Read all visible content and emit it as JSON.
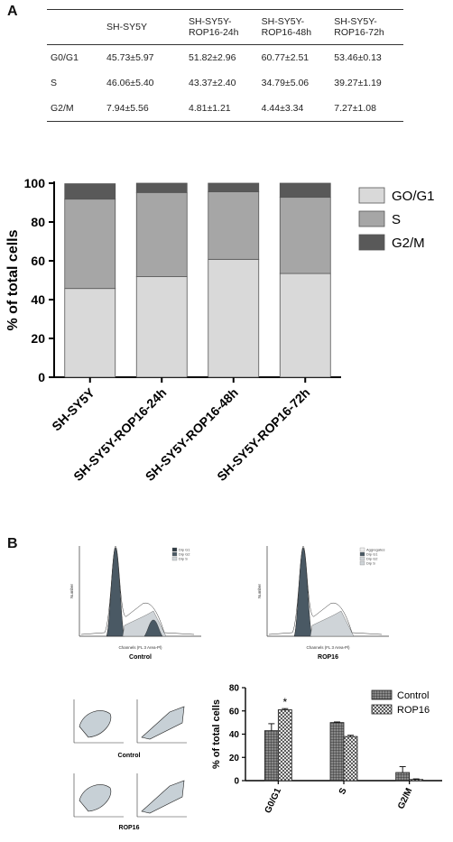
{
  "panel_a": {
    "label": "A",
    "table": {
      "columns": [
        "",
        "SH-SY5Y",
        "SH-SY5Y-ROP16-24h",
        "SH-SY5Y-ROP16-48h",
        "SH-SY5Y-ROP16-72h"
      ],
      "rows": [
        {
          "label": "G0/G1",
          "cells": [
            "45.73±5.97",
            "51.82±2.96",
            "60.77±2.51",
            "53.46±0.13"
          ]
        },
        {
          "label": "S",
          "cells": [
            "46.06±5.40",
            "43.37±2.40",
            "34.79±5.06",
            "39.27±1.19"
          ]
        },
        {
          "label": "G2/M",
          "cells": [
            "7.94±5.56",
            "4.81±1.21",
            "4.44±3.34",
            "7.27±1.08"
          ]
        }
      ]
    }
  },
  "panel_b": {
    "label": "B",
    "histogram_labels": [
      "Control",
      "ROP16"
    ],
    "histogram_xlabel": "Channels (FL 3 Area-Pl)",
    "histogram_ylabel": "Number",
    "legend_left": [
      "Dip G1",
      "Dip G2",
      "Dip S"
    ],
    "legend_right": [
      "Aggregates",
      "Dip G1",
      "Dip G2",
      "Dip S"
    ],
    "scatter_labels": [
      "Control",
      "ROP16"
    ]
  },
  "chart_data": [
    {
      "type": "bar",
      "stacked": true,
      "categories": [
        "SH-SY5Y",
        "SH-SY5Y-ROP16-24h",
        "SH-SY5Y-ROP16-48h",
        "SH-SY5Y-ROP16-72h"
      ],
      "series": [
        {
          "name": "GO/G1",
          "values": [
            45.73,
            51.82,
            60.77,
            53.46
          ],
          "color": "#d9d9d9"
        },
        {
          "name": "S",
          "values": [
            46.06,
            43.37,
            34.79,
            39.27
          ],
          "color": "#a6a6a6"
        },
        {
          "name": "G2/M",
          "values": [
            7.94,
            4.81,
            4.44,
            7.27
          ],
          "color": "#595959"
        }
      ],
      "ylabel": "% of total cells",
      "ylim": [
        0,
        100
      ],
      "yticks": [
        0,
        20,
        40,
        60,
        80,
        100
      ],
      "legend": "right"
    },
    {
      "type": "bar",
      "categories": [
        "G0/G1",
        "S",
        "G2/M"
      ],
      "series": [
        {
          "name": "Control",
          "values": [
            43,
            50,
            7
          ],
          "errors": [
            6,
            0.5,
            5
          ]
        },
        {
          "name": "ROP16",
          "values": [
            61,
            38,
            1
          ],
          "errors": [
            1,
            1,
            0.5
          ]
        }
      ],
      "ylabel": "% of total cells",
      "ylim": [
        0,
        80
      ],
      "yticks": [
        0,
        20,
        40,
        60,
        80
      ],
      "annotation": "*",
      "legend": "top-right"
    }
  ]
}
